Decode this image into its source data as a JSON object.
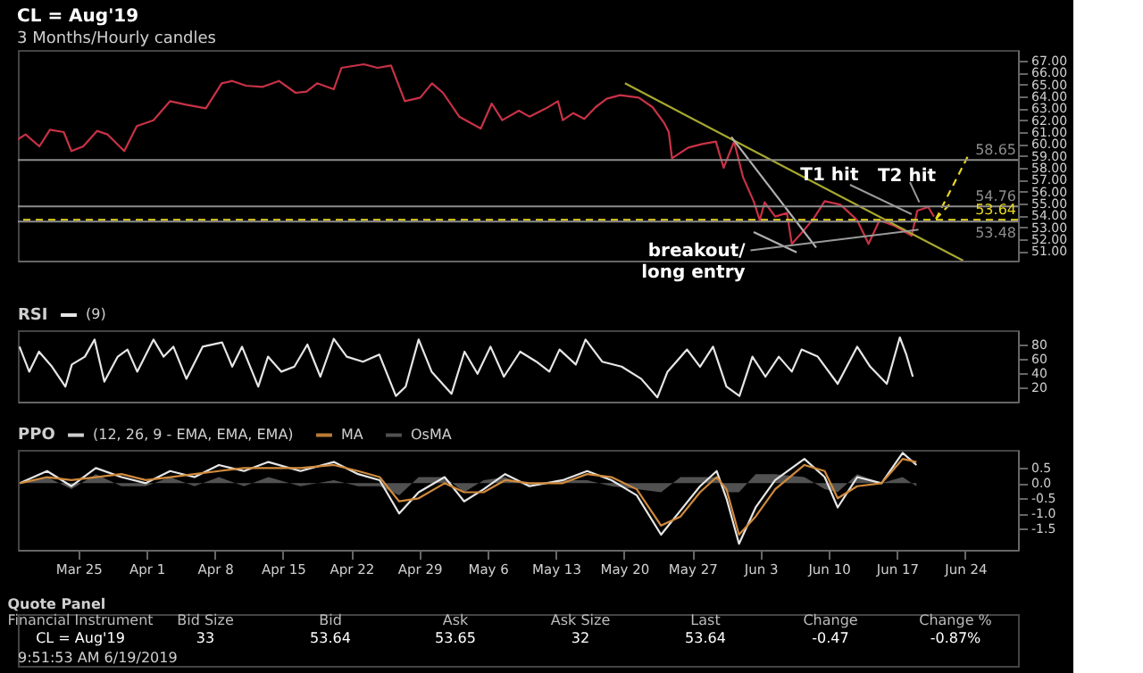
{
  "chart_data": [
    {
      "type": "line",
      "title": "CL = Aug'19",
      "subtitle": "3 Months/Hourly candles",
      "xlim": [
        "2019-03-18T19:00",
        "2019-06-29T10:00"
      ],
      "ylim": [
        50.2,
        67.9
      ],
      "tick_labels": "y",
      "yticks": [
        {
          "value": 51,
          "label": "51.00"
        },
        {
          "value": 52,
          "label": "52.00"
        },
        {
          "value": 53,
          "label": "53.00"
        },
        {
          "value": 54,
          "label": "54.00"
        },
        {
          "value": 55,
          "label": "55.00"
        },
        {
          "value": 56,
          "label": "56.00"
        },
        {
          "value": 57,
          "label": "57.00"
        },
        {
          "value": 58,
          "label": "58.00"
        },
        {
          "value": 59,
          "label": "59.00"
        },
        {
          "value": 60,
          "label": "60.00"
        },
        {
          "value": 61,
          "label": "61.00"
        },
        {
          "value": 62,
          "label": "62.00"
        },
        {
          "value": 63,
          "label": "63.00"
        },
        {
          "value": 64,
          "label": "64.00"
        },
        {
          "value": 65,
          "label": "65.00"
        },
        {
          "value": 66,
          "label": "66.00"
        },
        {
          "value": 67,
          "label": "67.00"
        }
      ],
      "x": [
        "2019-03-18T19:00",
        "2019-03-19T14:00",
        "2019-03-21T00:00",
        "2019-03-22T02:00",
        "2019-03-23T12:00",
        "2019-03-24T07:00",
        "2019-03-25T12:00",
        "2019-03-26T22:00",
        "2019-03-28T00:00",
        "2019-03-29T17:00",
        "2019-03-31T00:00",
        "2019-04-01T17:00",
        "2019-04-03T10:00",
        "2019-04-05T02:00",
        "2019-04-07T02:00",
        "2019-04-08T17:00",
        "2019-04-09T19:00",
        "2019-04-11T05:00",
        "2019-04-12T22:00",
        "2019-04-14T14:00",
        "2019-04-16T07:00",
        "2019-04-17T10:00",
        "2019-04-18T12:00",
        "2019-04-20T05:00",
        "2019-04-21T00:00",
        "2019-04-23T07:00",
        "2019-04-24T17:00",
        "2019-04-26T02:00",
        "2019-04-27T12:00",
        "2019-04-29T02:00",
        "2019-04-30T07:00",
        "2019-05-01T10:00",
        "2019-05-03T02:00",
        "2019-05-05T07:00",
        "2019-05-06T10:00",
        "2019-05-07T12:00",
        "2019-05-09T05:00",
        "2019-05-10T07:00",
        "2019-05-12T00:00",
        "2019-05-13T05:00",
        "2019-05-13T17:00",
        "2019-05-14T19:00",
        "2019-05-15T22:00",
        "2019-05-17T02:00",
        "2019-05-18T05:00",
        "2019-05-19T14:00",
        "2019-05-21T12:00",
        "2019-05-22T22:00",
        "2019-05-24T02:00",
        "2019-05-24T14:00",
        "2019-05-24T22:00",
        "2019-05-26T14:00",
        "2019-05-28T00:00",
        "2019-05-29T10:00",
        "2019-05-30T05:00",
        "2019-05-31T07:00",
        "2019-06-01T05:00",
        "2019-06-02T07:00",
        "2019-06-02T22:00",
        "2019-06-03T10:00",
        "2019-06-04T12:00",
        "2019-06-05T17:00",
        "2019-06-06T05:00",
        "2019-06-07T07:00",
        "2019-06-08T10:00",
        "2019-06-09T14:00",
        "2019-06-11T05:00",
        "2019-06-12T22:00",
        "2019-06-14T02:00",
        "2019-06-15T05:00",
        "2019-06-16T19:00",
        "2019-06-18T12:00",
        "2019-06-19T02:00",
        "2019-06-20T05:00",
        "2019-06-20T19:00"
      ],
      "series": [
        {
          "color": "#c83246",
          "values": [
            60.4,
            60.8,
            59.8,
            61.2,
            61.0,
            59.4,
            59.8,
            61.1,
            60.8,
            59.4,
            61.5,
            62.0,
            63.6,
            63.3,
            63.0,
            65.1,
            65.3,
            64.9,
            64.8,
            65.3,
            64.3,
            64.4,
            65.1,
            64.6,
            66.4,
            66.7,
            66.4,
            66.6,
            63.6,
            63.9,
            65.1,
            64.3,
            62.3,
            61.3,
            63.4,
            62.0,
            62.8,
            62.3,
            63.0,
            63.6,
            62.0,
            62.6,
            62.1,
            63.1,
            63.8,
            64.1,
            63.9,
            63.1,
            61.8,
            61.0,
            58.8,
            59.7,
            60.0,
            60.2,
            58.0,
            60.2,
            57.2,
            55.2,
            53.6,
            55.1,
            53.9,
            54.2,
            51.6,
            52.6,
            53.7,
            55.2,
            54.9,
            53.6,
            51.6,
            53.6,
            53.1,
            52.3,
            54.4,
            54.7,
            53.9
          ]
        },
        {
          "x": [
            "2019-05-20T02:00",
            "2019-06-23T19:00"
          ],
          "values": [
            65.1,
            50.2
          ],
          "color": "#a8a830"
        },
        {
          "x": [
            "2019-05-31T00:00",
            "2019-06-08T17:00"
          ],
          "values": [
            60.6,
            51.3
          ],
          "color": "#b0b0b0"
        },
        {
          "x": [
            "2019-06-02T07:00",
            "2019-06-06T17:00"
          ],
          "values": [
            52.6,
            50.9
          ],
          "color": "#b0b0b0"
        },
        {
          "x": [
            "2019-06-21T00:00",
            "2019-06-24T07:00"
          ],
          "values": [
            53.7,
            59.0
          ],
          "color": "#e8d820",
          "line_style": "dashed"
        },
        {
          "x": [
            "2019-06-21T00:00",
            "2019-06-22T17:00"
          ],
          "values": [
            53.7,
            55.2
          ],
          "color": "#e8d820",
          "line_style": "dashed"
        }
      ],
      "ref_lines": [
        {
          "axis": "y",
          "value": 58.65,
          "label": "58.65",
          "color": "#8c8c8c"
        },
        {
          "axis": "y",
          "value": 54.76,
          "label": "54.76",
          "color": "#8c8c8c"
        },
        {
          "axis": "y",
          "value": 53.64,
          "label": "53.64",
          "color": "#e8d820",
          "line_style": "dashed"
        },
        {
          "axis": "y",
          "value": 53.48,
          "label": "53.48",
          "color": "#8c8c8c"
        }
      ],
      "annotations": [
        {
          "text": "T1 hit",
          "x": "2019-06-18T12:00",
          "y": 54.1
        },
        {
          "text": "T2 hit",
          "x": "2019-06-19T07:00",
          "y": 55.1
        },
        {
          "text": "breakout/\nlong entry",
          "x": "2019-06-19T05:00",
          "y": 52.8
        }
      ]
    },
    {
      "type": "line",
      "legend_title": "RSI",
      "legend": "top left",
      "xlim": [
        "2019-03-18T19:00",
        "2019-06-29T10:00"
      ],
      "ylim": [
        0,
        100
      ],
      "yticks": [
        20,
        40,
        60,
        80
      ],
      "tick_labels": "y",
      "series": [
        {
          "name": "(9)",
          "color": "#e6e6e6",
          "x": [
            "2019-03-18T23:00",
            "2019-03-19T23:00",
            "2019-03-20T23:00",
            "2019-03-22T07:00",
            "2019-03-23T16:00",
            "2019-03-24T08:00",
            "2019-03-25T16:00",
            "2019-03-26T16:00",
            "2019-03-27T16:00",
            "2019-03-29T01:00",
            "2019-03-30T01:00",
            "2019-03-31T01:00",
            "2019-04-01T17:00",
            "2019-04-02T18:00",
            "2019-04-03T18:00",
            "2019-04-05T02:00",
            "2019-04-06T18:00",
            "2019-04-08T18:00",
            "2019-04-09T19:00",
            "2019-04-10T19:00",
            "2019-04-12T11:00",
            "2019-04-13T11:00",
            "2019-04-14T20:00",
            "2019-04-16T04:00",
            "2019-04-17T12:00",
            "2019-04-18T20:00",
            "2019-04-20T05:00",
            "2019-04-21T13:00",
            "2019-04-23T05:00",
            "2019-04-24T21:00",
            "2019-04-26T14:00",
            "2019-04-27T14:00",
            "2019-04-28T22:00",
            "2019-04-30T06:00",
            "2019-05-02T07:00",
            "2019-05-03T15:00",
            "2019-05-04T23:00",
            "2019-05-06T07:00",
            "2019-05-07T16:00",
            "2019-05-09T08:00",
            "2019-05-11T00:00",
            "2019-05-12T08:00",
            "2019-05-13T09:00",
            "2019-05-15T01:00",
            "2019-05-16T01:00",
            "2019-05-17T18:00",
            "2019-05-19T18:00",
            "2019-05-21T18:00",
            "2019-05-23T10:00",
            "2019-05-24T11:00",
            "2019-05-26T11:00",
            "2019-05-27T19:00",
            "2019-05-29T03:00",
            "2019-05-30T12:00",
            "2019-05-31T20:00",
            "2019-06-02T04:00",
            "2019-06-03T12:00",
            "2019-06-04T21:00",
            "2019-06-06T05:00",
            "2019-06-07T05:00",
            "2019-06-08T21:00",
            "2019-06-10T22:00",
            "2019-06-12T22:00",
            "2019-06-14T06:00",
            "2019-06-15T23:00",
            "2019-06-17T07:00",
            "2019-06-17T23:00",
            "2019-06-18T15:00"
          ],
          "values": [
            77,
            42,
            70,
            49,
            21,
            52,
            63,
            87,
            28,
            63,
            73,
            42,
            87,
            63,
            77,
            32,
            77,
            83,
            49,
            77,
            21,
            63,
            42,
            49,
            80,
            35,
            88,
            63,
            56,
            66,
            8,
            21,
            87,
            42,
            11,
            70,
            39,
            77,
            35,
            70,
            56,
            42,
            73,
            52,
            87,
            56,
            49,
            32,
            6,
            42,
            73,
            49,
            77,
            21,
            8,
            63,
            35,
            63,
            42,
            73,
            63,
            25,
            77,
            49,
            25,
            90,
            66,
            35
          ]
        }
      ]
    },
    {
      "type": "line",
      "legend_title": "PPO",
      "legend": "top left",
      "xlim": [
        "2019-03-18T19:00",
        "2019-06-29T10:00"
      ],
      "ylim": [
        -2.2,
        1.1
      ],
      "yticks": [
        {
          "value": 0.5,
          "label": "0.5"
        },
        {
          "value": 0,
          "label": "0.0"
        },
        {
          "value": -0.5,
          "label": "-0.5"
        },
        {
          "value": -1,
          "label": "-1.0"
        },
        {
          "value": -1.5,
          "label": "-1.5"
        }
      ],
      "xticks": [
        {
          "value": "2019-03-25",
          "label": "Mar 25"
        },
        {
          "value": "2019-04-01",
          "label": "Apr 1"
        },
        {
          "value": "2019-04-08",
          "label": "Apr 8"
        },
        {
          "value": "2019-04-15",
          "label": "Apr 15"
        },
        {
          "value": "2019-04-22",
          "label": "Apr 22"
        },
        {
          "value": "2019-04-29",
          "label": "Apr 29"
        },
        {
          "value": "2019-05-06",
          "label": "May 6"
        },
        {
          "value": "2019-05-13",
          "label": "May 13"
        },
        {
          "value": "2019-05-20",
          "label": "May 20"
        },
        {
          "value": "2019-05-27",
          "label": "May 27"
        },
        {
          "value": "2019-06-03",
          "label": "Jun 3"
        },
        {
          "value": "2019-06-10",
          "label": "Jun 10"
        },
        {
          "value": "2019-06-17",
          "label": "Jun 17"
        },
        {
          "value": "2019-06-24",
          "label": "Jun 24"
        }
      ],
      "x": [
        "2019-03-19T00:00",
        "2019-03-21T19:00",
        "2019-03-24T07:00",
        "2019-03-26T19:00",
        "2019-03-29T10:00",
        "2019-03-31T22:00",
        "2019-04-03T10:00",
        "2019-04-05T22:00",
        "2019-04-08T10:00",
        "2019-04-11T00:00",
        "2019-04-13T12:00",
        "2019-04-16T19:00",
        "2019-04-20T05:00",
        "2019-04-22T17:00",
        "2019-04-24T22:00",
        "2019-04-26T22:00",
        "2019-04-28T22:00",
        "2019-05-01T14:00",
        "2019-05-03T14:00",
        "2019-05-05T14:00",
        "2019-05-07T19:00",
        "2019-05-10T07:00",
        "2019-05-13T17:00",
        "2019-05-16T05:00",
        "2019-05-18T17:00",
        "2019-05-21T07:00",
        "2019-05-23T19:00",
        "2019-05-25T19:00",
        "2019-05-27T19:00",
        "2019-05-29T12:00",
        "2019-05-30T12:00",
        "2019-05-31T19:00",
        "2019-06-02T12:00",
        "2019-06-04T12:00",
        "2019-06-07T12:00",
        "2019-06-09T14:00",
        "2019-06-10T22:00",
        "2019-06-12T22:00",
        "2019-06-15T10:00",
        "2019-06-17T14:00",
        "2019-06-19T00:00"
      ],
      "series": [
        {
          "name": "(12, 26, 9 - EMA, EMA, EMA)",
          "color": "#e6e6e6",
          "values": [
            0.0,
            0.4,
            -0.1,
            0.5,
            0.2,
            0.0,
            0.4,
            0.2,
            0.6,
            0.4,
            0.7,
            0.4,
            0.7,
            0.3,
            0.1,
            -1.0,
            -0.3,
            0.2,
            -0.6,
            -0.2,
            0.3,
            -0.1,
            0.1,
            0.4,
            0.1,
            -0.4,
            -1.7,
            -0.9,
            -0.1,
            0.4,
            -0.5,
            -2.0,
            -0.8,
            0.1,
            0.8,
            0.2,
            -0.8,
            0.2,
            0.0,
            1.0,
            0.6
          ]
        },
        {
          "name": "MA",
          "color": "#d08a3c",
          "values": [
            0.0,
            0.2,
            0.1,
            0.2,
            0.3,
            0.1,
            0.2,
            0.3,
            0.4,
            0.5,
            0.5,
            0.5,
            0.6,
            0.4,
            0.2,
            -0.6,
            -0.5,
            0.0,
            -0.3,
            -0.3,
            0.1,
            0.0,
            0.0,
            0.3,
            0.2,
            -0.2,
            -1.4,
            -1.1,
            -0.3,
            0.2,
            -0.2,
            -1.7,
            -1.1,
            -0.2,
            0.6,
            0.4,
            -0.5,
            -0.1,
            0.0,
            0.8,
            0.7
          ]
        },
        {
          "name": "OsMA",
          "type": "area",
          "color": "#5a5a5a",
          "values": [
            0.0,
            0.2,
            -0.2,
            0.3,
            -0.1,
            -0.1,
            0.2,
            -0.1,
            0.2,
            -0.1,
            0.2,
            -0.1,
            0.1,
            -0.1,
            -0.1,
            -0.4,
            0.2,
            0.2,
            -0.3,
            0.1,
            0.2,
            -0.1,
            0.1,
            0.1,
            -0.1,
            -0.2,
            -0.3,
            0.2,
            0.2,
            0.2,
            -0.3,
            -0.3,
            0.3,
            0.3,
            0.2,
            -0.2,
            -0.3,
            0.3,
            0.0,
            0.2,
            -0.1
          ]
        }
      ]
    },
    {
      "type": "other",
      "title": "Quote Panel",
      "categories": [
        "Financial Instrument",
        "Bid Size",
        "Bid",
        "Ask",
        "Ask Size",
        "Last",
        "Change",
        "Change %"
      ],
      "annotations": [
        "CL = Aug'19",
        "33",
        "53.64",
        "53.65",
        "32",
        "53.64",
        "-0.47",
        "-0.87%",
        "9:51:53 AM 6/19/2019"
      ]
    }
  ]
}
